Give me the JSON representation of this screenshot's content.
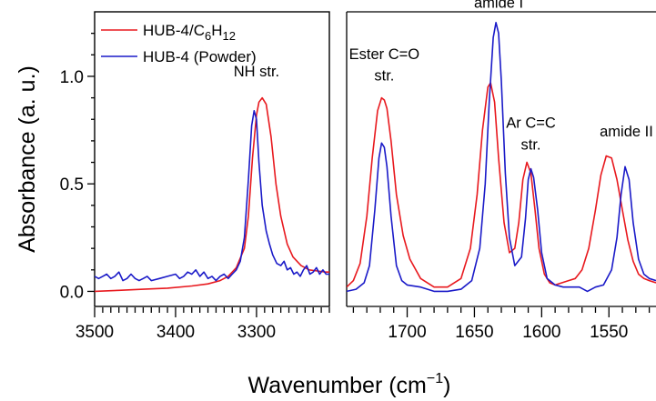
{
  "chart_data": {
    "type": "line",
    "ylabel": "Absorbance (a. u.)",
    "xlabel": "Wavenumber (cm",
    "xlabel_sup": "−1",
    "xlabel_close": ")",
    "legend": {
      "placement": "top-left",
      "entries": [
        {
          "name_main": "HUB-4/C",
          "name_sub1": "6",
          "name_mid": "H",
          "name_sub2": "12",
          "color": "#e8191e"
        },
        {
          "name_main": "HUB-4 (Powder)",
          "name_sub1": "",
          "name_mid": "",
          "name_sub2": "",
          "color": "#1a1ac8"
        }
      ]
    },
    "colors": {
      "red": "#e8191e",
      "blue": "#1a1ac8"
    },
    "panels": [
      {
        "id": "left",
        "xlim": [
          3500,
          3210
        ],
        "ylim": [
          -0.07,
          1.3
        ],
        "xticks": [
          3500,
          3400,
          3300
        ],
        "xtick_labels": [
          "3500",
          "3400",
          "3300"
        ],
        "minor_step": 10,
        "yticks": [
          0.0,
          0.5,
          1.0
        ],
        "ytick_labels": [
          "0.0",
          "0.5",
          "1.0"
        ],
        "annotations": [
          {
            "text": "NH str.",
            "x": 3300,
            "y": 1.0
          }
        ],
        "series": [
          {
            "color_key": "red",
            "x": [
              3500,
              3470,
              3440,
              3410,
              3380,
              3360,
              3345,
              3335,
              3325,
              3315,
              3310,
              3305,
              3300,
              3297,
              3293,
              3288,
              3282,
              3276,
              3270,
              3262,
              3255,
              3245,
              3235,
              3225,
              3215,
              3210
            ],
            "y": [
              0.0,
              0.005,
              0.01,
              0.015,
              0.025,
              0.035,
              0.05,
              0.07,
              0.11,
              0.2,
              0.35,
              0.62,
              0.82,
              0.88,
              0.9,
              0.87,
              0.72,
              0.5,
              0.35,
              0.22,
              0.16,
              0.12,
              0.1,
              0.095,
              0.09,
              0.09
            ]
          },
          {
            "color_key": "blue",
            "x": [
              3500,
              3495,
              3490,
              3485,
              3480,
              3475,
              3470,
              3465,
              3460,
              3455,
              3450,
              3445,
              3440,
              3435,
              3430,
              3420,
              3410,
              3400,
              3395,
              3390,
              3385,
              3380,
              3375,
              3370,
              3365,
              3360,
              3355,
              3350,
              3345,
              3340,
              3335,
              3330,
              3325,
              3320,
              3315,
              3310,
              3306,
              3303,
              3300,
              3297,
              3293,
              3288,
              3284,
              3280,
              3275,
              3270,
              3266,
              3262,
              3258,
              3254,
              3250,
              3246,
              3242,
              3238,
              3234,
              3230,
              3226,
              3222,
              3218,
              3214,
              3210
            ],
            "y": [
              0.07,
              0.06,
              0.07,
              0.08,
              0.06,
              0.07,
              0.09,
              0.05,
              0.06,
              0.08,
              0.06,
              0.05,
              0.06,
              0.07,
              0.05,
              0.06,
              0.07,
              0.08,
              0.06,
              0.07,
              0.09,
              0.08,
              0.1,
              0.07,
              0.09,
              0.06,
              0.07,
              0.05,
              0.07,
              0.08,
              0.06,
              0.08,
              0.1,
              0.14,
              0.25,
              0.52,
              0.77,
              0.84,
              0.8,
              0.6,
              0.4,
              0.28,
              0.22,
              0.17,
              0.13,
              0.12,
              0.14,
              0.1,
              0.11,
              0.08,
              0.09,
              0.07,
              0.1,
              0.12,
              0.08,
              0.09,
              0.11,
              0.08,
              0.1,
              0.08,
              0.08
            ]
          }
        ]
      },
      {
        "id": "right",
        "xlim": [
          1745,
          1515
        ],
        "ylim": [
          -0.07,
          1.3
        ],
        "xticks": [
          1700,
          1650,
          1600,
          1550
        ],
        "xtick_labels": [
          "1700",
          "1650",
          "1600",
          "1550"
        ],
        "minor_step": 10,
        "yticks": [],
        "ytick_labels": [],
        "annotations": [
          {
            "text": "Ester C=O",
            "x": 1717,
            "y": 1.08
          },
          {
            "text": "str.",
            "x": 1717,
            "y": 0.98
          },
          {
            "text": "amide I",
            "x": 1632,
            "y": 1.32
          },
          {
            "text": "Ar C=C",
            "x": 1608,
            "y": 0.76
          },
          {
            "text": "str.",
            "x": 1608,
            "y": 0.66
          },
          {
            "text": "amide II",
            "x": 1537,
            "y": 0.72
          }
        ],
        "series": [
          {
            "color_key": "red",
            "x": [
              1745,
              1740,
              1735,
              1730,
              1726,
              1722,
              1719,
              1717,
              1715,
              1712,
              1708,
              1703,
              1698,
              1690,
              1680,
              1670,
              1660,
              1653,
              1648,
              1644,
              1640,
              1638,
              1635,
              1632,
              1628,
              1624,
              1620,
              1617,
              1614,
              1611,
              1608,
              1605,
              1602,
              1598,
              1594,
              1590,
              1585,
              1580,
              1575,
              1570,
              1565,
              1560,
              1556,
              1552,
              1548,
              1544,
              1540,
              1536,
              1532,
              1528,
              1524,
              1520,
              1515
            ],
            "y": [
              0.02,
              0.05,
              0.13,
              0.35,
              0.62,
              0.84,
              0.9,
              0.89,
              0.85,
              0.7,
              0.45,
              0.26,
              0.15,
              0.06,
              0.02,
              0.02,
              0.06,
              0.2,
              0.45,
              0.75,
              0.95,
              0.97,
              0.88,
              0.62,
              0.32,
              0.18,
              0.2,
              0.32,
              0.52,
              0.6,
              0.55,
              0.38,
              0.2,
              0.08,
              0.04,
              0.03,
              0.04,
              0.05,
              0.06,
              0.1,
              0.2,
              0.38,
              0.54,
              0.63,
              0.62,
              0.52,
              0.38,
              0.24,
              0.14,
              0.08,
              0.06,
              0.05,
              0.04
            ]
          },
          {
            "color_key": "blue",
            "x": [
              1745,
              1738,
              1732,
              1728,
              1724,
              1721,
              1719,
              1717,
              1715,
              1712,
              1708,
              1704,
              1700,
              1690,
              1680,
              1670,
              1660,
              1652,
              1646,
              1642,
              1639,
              1636,
              1634,
              1632,
              1630,
              1627,
              1624,
              1620,
              1615,
              1612,
              1610,
              1608,
              1606,
              1603,
              1600,
              1596,
              1590,
              1584,
              1578,
              1572,
              1566,
              1560,
              1554,
              1548,
              1544,
              1541,
              1538,
              1535,
              1532,
              1528,
              1524,
              1520,
              1515
            ],
            "y": [
              0.0,
              0.01,
              0.04,
              0.12,
              0.38,
              0.62,
              0.69,
              0.67,
              0.58,
              0.35,
              0.12,
              0.05,
              0.03,
              0.02,
              0.0,
              0.0,
              0.01,
              0.05,
              0.2,
              0.5,
              0.88,
              1.18,
              1.25,
              1.2,
              0.98,
              0.55,
              0.25,
              0.12,
              0.16,
              0.34,
              0.52,
              0.57,
              0.53,
              0.38,
              0.18,
              0.06,
              0.03,
              0.02,
              0.02,
              0.02,
              0.0,
              0.02,
              0.03,
              0.1,
              0.25,
              0.45,
              0.58,
              0.52,
              0.32,
              0.15,
              0.08,
              0.06,
              0.05
            ]
          }
        ]
      }
    ]
  }
}
